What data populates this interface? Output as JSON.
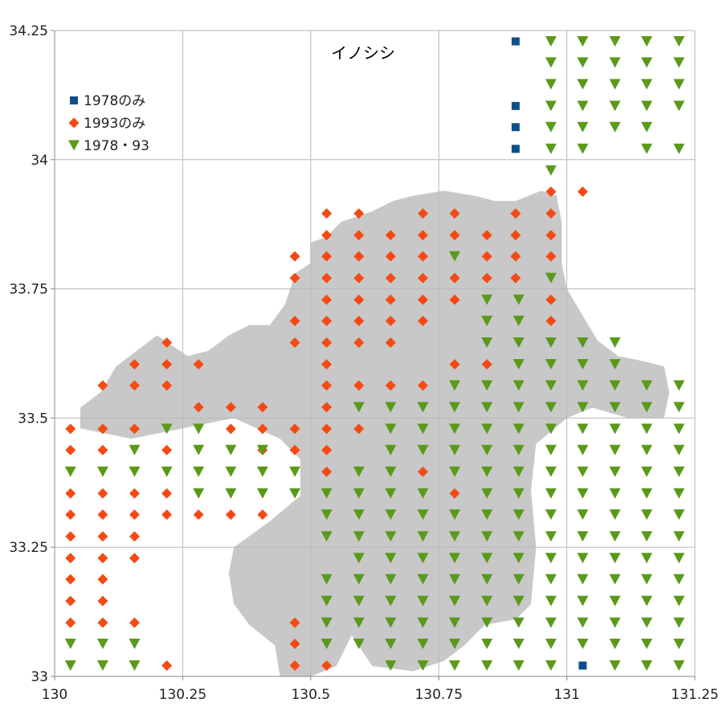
{
  "chart_data": {
    "type": "scatter",
    "title": "イノシシ",
    "xlabel": "",
    "ylabel": "",
    "xlim": [
      130,
      131.25
    ],
    "ylim": [
      33,
      34.25
    ],
    "xticks": [
      130,
      130.25,
      130.5,
      130.75,
      131,
      131.25
    ],
    "xtick_labels": [
      "130",
      "130.25",
      "130.5",
      "130.75",
      "131",
      "131.25"
    ],
    "yticks": [
      33,
      33.25,
      33.5,
      33.75,
      34,
      34.25
    ],
    "ytick_labels": [
      "33",
      "33.25",
      "33.5",
      "33.75",
      "34",
      "34.25"
    ],
    "grid": true,
    "legend_position": "top-left",
    "series": [
      {
        "name": "1978のみ",
        "marker": "square",
        "color": "#0d4f8b",
        "x": [
          130.9,
          130.9,
          130.9,
          130.9,
          131.031
        ],
        "y": [
          34.229,
          34.104,
          34.063,
          34.021,
          33.021
        ]
      },
      {
        "name": "1993のみ",
        "marker": "diamond",
        "color": "#f54a14",
        "x": [
          130.531,
          130.594,
          130.719,
          130.781,
          130.9,
          130.969,
          131.031,
          130.969,
          130.531,
          130.594,
          130.656,
          130.719,
          130.781,
          130.844,
          130.9,
          130.969,
          130.469,
          130.531,
          130.594,
          130.656,
          130.719,
          130.844,
          130.9,
          130.969,
          130.469,
          130.531,
          130.594,
          130.656,
          130.719,
          130.781,
          130.844,
          130.9,
          130.531,
          130.594,
          130.656,
          130.719,
          130.781,
          130.969,
          130.469,
          130.531,
          130.594,
          130.656,
          130.719,
          130.969,
          130.219,
          130.469,
          130.531,
          130.594,
          130.656,
          130.156,
          130.219,
          130.281,
          130.531,
          130.781,
          130.844,
          130.094,
          130.156,
          130.219,
          130.531,
          130.594,
          130.656,
          130.719,
          130.281,
          130.344,
          130.406,
          130.531,
          130.031,
          130.094,
          130.156,
          130.344,
          130.406,
          130.469,
          130.531,
          130.594,
          130.031,
          130.094,
          130.219,
          130.406,
          130.469,
          130.531,
          130.531,
          130.719,
          130.031,
          130.094,
          130.156,
          130.219,
          130.781,
          130.031,
          130.094,
          130.156,
          130.219,
          130.281,
          130.344,
          130.406,
          130.031,
          130.094,
          130.156,
          130.031,
          130.094,
          130.156,
          130.031,
          130.094,
          130.031,
          130.094,
          130.031,
          130.094,
          130.156,
          130.469,
          130.469,
          130.219,
          130.469,
          130.531
        ],
        "y": [
          33.896,
          33.896,
          33.896,
          33.896,
          33.896,
          33.896,
          33.938,
          33.938,
          33.854,
          33.854,
          33.854,
          33.854,
          33.854,
          33.854,
          33.854,
          33.854,
          33.813,
          33.813,
          33.813,
          33.813,
          33.813,
          33.813,
          33.813,
          33.813,
          33.771,
          33.771,
          33.771,
          33.771,
          33.771,
          33.771,
          33.771,
          33.771,
          33.729,
          33.729,
          33.729,
          33.729,
          33.729,
          33.729,
          33.688,
          33.688,
          33.688,
          33.688,
          33.688,
          33.688,
          33.646,
          33.646,
          33.646,
          33.646,
          33.646,
          33.604,
          33.604,
          33.604,
          33.604,
          33.604,
          33.604,
          33.563,
          33.563,
          33.563,
          33.563,
          33.563,
          33.563,
          33.563,
          33.521,
          33.521,
          33.521,
          33.521,
          33.479,
          33.479,
          33.479,
          33.479,
          33.479,
          33.479,
          33.479,
          33.479,
          33.438,
          33.438,
          33.438,
          33.438,
          33.438,
          33.438,
          33.396,
          33.396,
          33.354,
          33.354,
          33.354,
          33.354,
          33.354,
          33.313,
          33.313,
          33.313,
          33.313,
          33.313,
          33.313,
          33.313,
          33.271,
          33.271,
          33.271,
          33.229,
          33.229,
          33.229,
          33.188,
          33.188,
          33.146,
          33.146,
          33.104,
          33.104,
          33.104,
          33.104,
          33.063,
          33.021,
          33.021,
          33.021
        ]
      },
      {
        "name": "1978・93",
        "marker": "triangle-down",
        "color": "#5a9a1a",
        "grid_rows": [
          {
            "y": 34.229,
            "x": [
              130.969,
              131.031,
              131.094,
              131.156,
              131.219
            ]
          },
          {
            "y": 34.188,
            "x": [
              130.969,
              131.031,
              131.094,
              131.156,
              131.219
            ]
          },
          {
            "y": 34.146,
            "x": [
              130.969,
              131.031,
              131.094,
              131.156,
              131.219
            ]
          },
          {
            "y": 34.104,
            "x": [
              130.969,
              131.031,
              131.094,
              131.156,
              131.219
            ]
          },
          {
            "y": 34.063,
            "x": [
              130.969,
              131.031,
              131.094,
              131.156
            ]
          },
          {
            "y": 34.021,
            "x": [
              130.969,
              131.031,
              131.156,
              131.219
            ]
          },
          {
            "y": 33.979,
            "x": [
              130.969
            ]
          },
          {
            "y": 33.813,
            "x": [
              130.781
            ]
          },
          {
            "y": 33.771,
            "x": [
              130.969
            ]
          },
          {
            "y": 33.729,
            "x": [
              130.844,
              130.906
            ]
          },
          {
            "y": 33.688,
            "x": [
              130.844,
              130.906
            ]
          },
          {
            "y": 33.646,
            "x": [
              130.844,
              130.906,
              130.969,
              131.031,
              131.094
            ]
          },
          {
            "y": 33.604,
            "x": [
              130.906,
              130.969,
              131.031,
              131.094
            ]
          },
          {
            "y": 33.563,
            "x": [
              130.781,
              130.844,
              130.906,
              130.969,
              131.031,
              131.094,
              131.156,
              131.219
            ]
          },
          {
            "y": 33.521,
            "x": [
              130.594,
              130.656,
              130.719,
              130.781,
              130.844,
              130.906,
              130.969,
              131.031,
              131.094,
              131.156,
              131.219
            ]
          },
          {
            "y": 33.479,
            "x": [
              130.219,
              130.281,
              130.656,
              130.719,
              130.781,
              130.844,
              130.906,
              130.969,
              131.031,
              131.094,
              131.156,
              131.219
            ]
          },
          {
            "y": 33.438,
            "x": [
              130.156,
              130.281,
              130.344,
              130.406,
              130.656,
              130.719,
              130.781,
              130.844,
              130.906,
              130.969,
              131.031,
              131.094,
              131.156,
              131.219
            ]
          },
          {
            "y": 33.396,
            "x": [
              130.031,
              130.094,
              130.156,
              130.219,
              130.281,
              130.344,
              130.406,
              130.469,
              130.594,
              130.656,
              130.781,
              130.844,
              130.906,
              130.969,
              131.031,
              131.094,
              131.156,
              131.219
            ]
          },
          {
            "y": 33.354,
            "x": [
              130.281,
              130.344,
              130.406,
              130.469,
              130.531,
              130.594,
              130.656,
              130.719,
              130.844,
              130.906,
              130.969,
              131.031,
              131.094,
              131.156,
              131.219
            ]
          },
          {
            "y": 33.313,
            "x": [
              130.531,
              130.594,
              130.656,
              130.719,
              130.781,
              130.844,
              130.906,
              130.969,
              131.031,
              131.094,
              131.156,
              131.219
            ]
          },
          {
            "y": 33.271,
            "x": [
              130.531,
              130.594,
              130.656,
              130.719,
              130.781,
              130.844,
              130.906,
              130.969,
              131.031,
              131.094,
              131.156,
              131.219
            ]
          },
          {
            "y": 33.229,
            "x": [
              130.594,
              130.656,
              130.719,
              130.781,
              130.844,
              130.906,
              130.969,
              131.031,
              131.094,
              131.156,
              131.219
            ]
          },
          {
            "y": 33.188,
            "x": [
              130.531,
              130.594,
              130.656,
              130.719,
              130.781,
              130.844,
              130.906,
              130.969,
              131.031,
              131.094,
              131.156,
              131.219
            ]
          },
          {
            "y": 33.146,
            "x": [
              130.531,
              130.594,
              130.656,
              130.719,
              130.781,
              130.844,
              130.906,
              130.969,
              131.031,
              131.094,
              131.156,
              131.219
            ]
          },
          {
            "y": 33.104,
            "x": [
              130.531,
              130.594,
              130.656,
              130.719,
              130.781,
              130.844,
              130.906,
              130.969,
              131.031,
              131.094,
              131.156,
              131.219
            ]
          },
          {
            "y": 33.063,
            "x": [
              130.031,
              130.094,
              130.156,
              130.531,
              130.594,
              130.656,
              130.719,
              130.781,
              130.844,
              130.906,
              130.969,
              131.031,
              131.094,
              131.156,
              131.219
            ]
          },
          {
            "y": 33.021,
            "x": [
              130.031,
              130.094,
              130.156,
              130.656,
              130.719,
              130.781,
              130.844,
              130.906,
              130.969,
              131.094,
              131.156,
              131.219
            ]
          }
        ]
      }
    ],
    "background_region": {
      "color": "#c8c8c8",
      "polygons": [
        [
          [
            130.05,
            33.48
          ],
          [
            130.05,
            33.52
          ],
          [
            130.09,
            33.55
          ],
          [
            130.12,
            33.6
          ],
          [
            130.16,
            33.63
          ],
          [
            130.2,
            33.66
          ],
          [
            130.26,
            33.62
          ],
          [
            130.3,
            33.63
          ],
          [
            130.34,
            33.66
          ],
          [
            130.38,
            33.68
          ],
          [
            130.42,
            33.68
          ],
          [
            130.45,
            33.72
          ],
          [
            130.47,
            33.78
          ],
          [
            130.5,
            33.8
          ],
          [
            130.5,
            33.84
          ],
          [
            130.53,
            33.85
          ],
          [
            130.56,
            33.88
          ],
          [
            130.62,
            33.9
          ],
          [
            130.66,
            33.92
          ],
          [
            130.7,
            33.93
          ],
          [
            130.76,
            33.94
          ],
          [
            130.82,
            33.93
          ],
          [
            130.86,
            33.92
          ],
          [
            130.9,
            33.92
          ],
          [
            130.95,
            33.94
          ],
          [
            130.98,
            33.93
          ],
          [
            130.99,
            33.88
          ],
          [
            130.99,
            33.8
          ],
          [
            131.0,
            33.75
          ],
          [
            131.03,
            33.7
          ],
          [
            131.06,
            33.65
          ],
          [
            131.1,
            33.62
          ],
          [
            131.15,
            33.61
          ],
          [
            131.19,
            33.6
          ],
          [
            131.2,
            33.55
          ],
          [
            131.19,
            33.5
          ],
          [
            131.12,
            33.5
          ],
          [
            131.05,
            33.52
          ],
          [
            131.0,
            33.5
          ],
          [
            130.94,
            33.45
          ],
          [
            130.93,
            33.36
          ],
          [
            130.94,
            33.25
          ],
          [
            130.93,
            33.14
          ],
          [
            130.9,
            33.11
          ],
          [
            130.84,
            33.1
          ],
          [
            130.8,
            33.06
          ],
          [
            130.76,
            33.03
          ],
          [
            130.7,
            33.01
          ],
          [
            130.62,
            33.02
          ],
          [
            130.58,
            33.08
          ],
          [
            130.55,
            33.02
          ],
          [
            130.5,
            33.0
          ],
          [
            130.44,
            33.0
          ],
          [
            130.43,
            33.06
          ],
          [
            130.38,
            33.1
          ],
          [
            130.35,
            33.14
          ],
          [
            130.34,
            33.2
          ],
          [
            130.35,
            33.25
          ],
          [
            130.42,
            33.3
          ],
          [
            130.48,
            33.35
          ],
          [
            130.48,
            33.42
          ],
          [
            130.44,
            33.46
          ],
          [
            130.35,
            33.5
          ],
          [
            130.25,
            33.48
          ],
          [
            130.15,
            33.46
          ],
          [
            130.05,
            33.48
          ]
        ]
      ]
    }
  }
}
